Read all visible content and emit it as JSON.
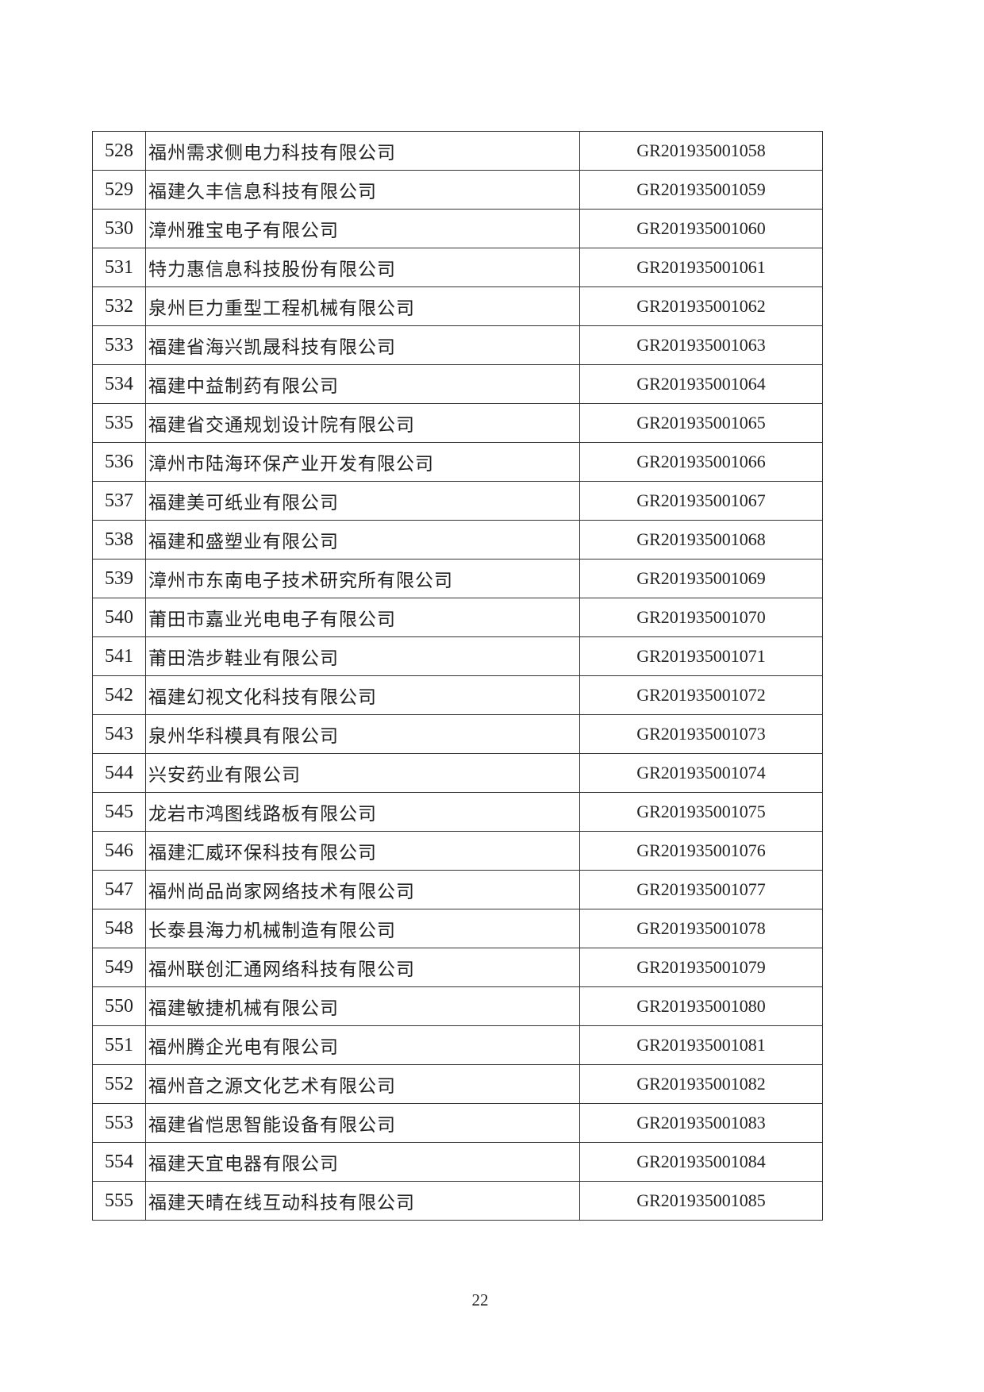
{
  "rows": [
    {
      "no": "528",
      "name": "福州需求侧电力科技有限公司",
      "code": "GR201935001058"
    },
    {
      "no": "529",
      "name": "福建久丰信息科技有限公司",
      "code": "GR201935001059"
    },
    {
      "no": "530",
      "name": "漳州雅宝电子有限公司",
      "code": "GR201935001060"
    },
    {
      "no": "531",
      "name": "特力惠信息科技股份有限公司",
      "code": "GR201935001061"
    },
    {
      "no": "532",
      "name": "泉州巨力重型工程机械有限公司",
      "code": "GR201935001062"
    },
    {
      "no": "533",
      "name": "福建省海兴凯晟科技有限公司",
      "code": "GR201935001063"
    },
    {
      "no": "534",
      "name": "福建中益制药有限公司",
      "code": "GR201935001064"
    },
    {
      "no": "535",
      "name": "福建省交通规划设计院有限公司",
      "code": "GR201935001065"
    },
    {
      "no": "536",
      "name": "漳州市陆海环保产业开发有限公司",
      "code": "GR201935001066"
    },
    {
      "no": "537",
      "name": "福建美可纸业有限公司",
      "code": "GR201935001067"
    },
    {
      "no": "538",
      "name": "福建和盛塑业有限公司",
      "code": "GR201935001068"
    },
    {
      "no": "539",
      "name": "漳州市东南电子技术研究所有限公司",
      "code": "GR201935001069"
    },
    {
      "no": "540",
      "name": "莆田市嘉业光电电子有限公司",
      "code": "GR201935001070"
    },
    {
      "no": "541",
      "name": "莆田浩步鞋业有限公司",
      "code": "GR201935001071"
    },
    {
      "no": "542",
      "name": "福建幻视文化科技有限公司",
      "code": "GR201935001072"
    },
    {
      "no": "543",
      "name": "泉州华科模具有限公司",
      "code": "GR201935001073"
    },
    {
      "no": "544",
      "name": "兴安药业有限公司",
      "code": "GR201935001074"
    },
    {
      "no": "545",
      "name": "龙岩市鸿图线路板有限公司",
      "code": "GR201935001075"
    },
    {
      "no": "546",
      "name": "福建汇威环保科技有限公司",
      "code": "GR201935001076"
    },
    {
      "no": "547",
      "name": "福州尚品尚家网络技术有限公司",
      "code": "GR201935001077"
    },
    {
      "no": "548",
      "name": "长泰县海力机械制造有限公司",
      "code": "GR201935001078"
    },
    {
      "no": "549",
      "name": "福州联创汇通网络科技有限公司",
      "code": "GR201935001079"
    },
    {
      "no": "550",
      "name": "福建敏捷机械有限公司",
      "code": "GR201935001080"
    },
    {
      "no": "551",
      "name": "福州腾企光电有限公司",
      "code": "GR201935001081"
    },
    {
      "no": "552",
      "name": "福州音之源文化艺术有限公司",
      "code": "GR201935001082"
    },
    {
      "no": "553",
      "name": "福建省恺思智能设备有限公司",
      "code": "GR201935001083"
    },
    {
      "no": "554",
      "name": "福建天宜电器有限公司",
      "code": "GR201935001084"
    },
    {
      "no": "555",
      "name": "福建天晴在线互动科技有限公司",
      "code": "GR201935001085"
    }
  ],
  "page_number": "22"
}
